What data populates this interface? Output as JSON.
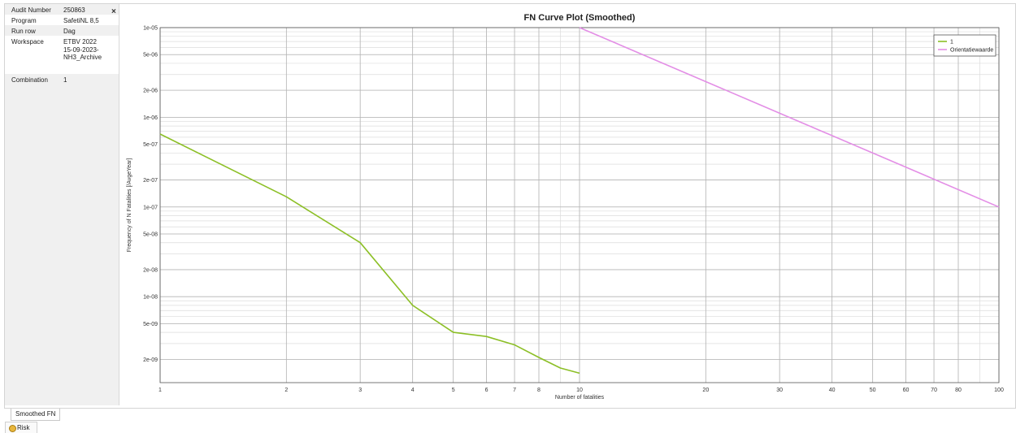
{
  "info": {
    "rows": [
      {
        "key": "Audit Number",
        "value": [
          "250863"
        ]
      },
      {
        "key": "Program",
        "value": [
          "SafetiNL 8,5"
        ]
      },
      {
        "key": "Run row",
        "value": [
          "Dag"
        ]
      },
      {
        "key": "Workspace",
        "value": [
          "ETBV 2022",
          "15-09-2023-",
          "NH3_Archive"
        ]
      },
      {
        "key": "Combination",
        "value": [
          "1"
        ]
      }
    ],
    "close_symbol": "×"
  },
  "tabs": {
    "smoothed_fn": "Smoothed FN",
    "risk": "Risk"
  },
  "chart_data": {
    "type": "line",
    "title": "FN Curve Plot (Smoothed)",
    "xlabel": "Number of fatalities",
    "ylabel": "Frequency of N Fatalities [/AvgeYear]",
    "x_scale": "log",
    "y_scale": "log",
    "xlim": [
      1,
      100
    ],
    "ylim": [
      1.1e-09,
      1e-05
    ],
    "x_ticks": [
      1,
      2,
      3,
      4,
      5,
      6,
      7,
      8,
      10,
      20,
      30,
      40,
      50,
      60,
      70,
      80,
      100
    ],
    "x_tick_labels": [
      "1",
      "2",
      "3",
      "4",
      "5",
      "6",
      "7",
      "8",
      "10",
      "20",
      "30",
      "40",
      "50",
      "60",
      "70",
      "80",
      "100"
    ],
    "y_ticks": [
      1e-05,
      5e-06,
      2e-06,
      1e-06,
      5e-07,
      2e-07,
      1e-07,
      5e-08,
      2e-08,
      1e-08,
      5e-09,
      2e-09
    ],
    "y_tick_labels": [
      "1e-05",
      "5e-06",
      "2e-06",
      "1e-06",
      "5e-07",
      "2e-07",
      "1e-07",
      "5e-08",
      "2e-08",
      "1e-08",
      "5e-09",
      "2e-09"
    ],
    "grid": true,
    "legend": "top-right",
    "series": [
      {
        "name": "1",
        "color": "#8cbf26",
        "x": [
          1,
          2,
          3,
          4,
          5,
          6,
          7,
          8,
          9,
          10
        ],
        "y": [
          6.5e-07,
          1.3e-07,
          4e-08,
          8e-09,
          4e-09,
          3.6e-09,
          2.9e-09,
          2.1e-09,
          1.6e-09,
          1.4e-09
        ]
      },
      {
        "name": "Orientatiewaarde",
        "color": "#e38ee6",
        "x": [
          10,
          100
        ],
        "y": [
          1e-05,
          1e-07
        ]
      }
    ]
  }
}
